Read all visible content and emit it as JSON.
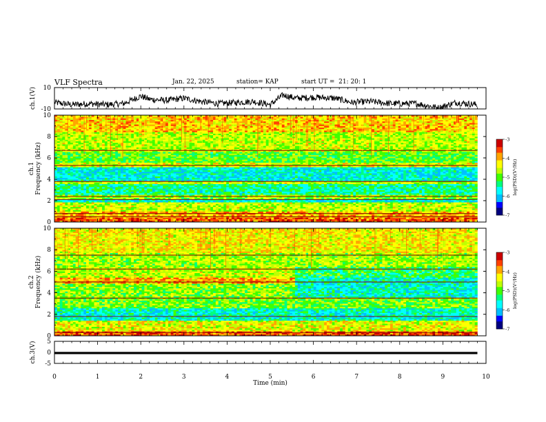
{
  "header": {
    "title": "VLF Spectra",
    "date": "Jan. 22, 2025",
    "station": "station= KAP",
    "start": "start UT =  21: 20: 1"
  },
  "colors": {
    "spectral_ramp": [
      "#00007f",
      "#0000ff",
      "#00bfff",
      "#00ffff",
      "#00ff7f",
      "#40ff00",
      "#bfff00",
      "#ffff00",
      "#ffa500",
      "#ff4000",
      "#cc0000",
      "#ffffff"
    ]
  },
  "chart_data": [
    {
      "type": "line",
      "name": "ch1-waveform",
      "ylabel": "ch.1(V)",
      "ylim": [
        -10,
        10
      ],
      "yticks": [
        "10",
        "-10"
      ],
      "xlim": [
        0,
        10
      ],
      "x_extent_min": 9.8,
      "trend": [
        [
          0,
          -4
        ],
        [
          0.4,
          -6
        ],
        [
          0.8,
          -5
        ],
        [
          1.2,
          -6
        ],
        [
          1.6,
          -5
        ],
        [
          2.0,
          2
        ],
        [
          2.2,
          -1
        ],
        [
          2.6,
          -2
        ],
        [
          3.0,
          0
        ],
        [
          3.4,
          -3
        ],
        [
          3.8,
          -5
        ],
        [
          4.2,
          -4
        ],
        [
          4.6,
          -3
        ],
        [
          5.0,
          -6
        ],
        [
          5.3,
          3
        ],
        [
          5.6,
          0
        ],
        [
          6.0,
          1
        ],
        [
          6.5,
          0
        ],
        [
          6.9,
          -4
        ],
        [
          7.3,
          -3
        ],
        [
          7.8,
          -5
        ],
        [
          8.4,
          -5
        ],
        [
          8.9,
          -9
        ],
        [
          9.3,
          -4
        ],
        [
          9.8,
          -6
        ]
      ]
    },
    {
      "type": "heatmap",
      "name": "ch1-spectrogram",
      "ylabel_lines": [
        "ch.1",
        "Frequency (kHz)"
      ],
      "ylim": [
        0,
        10
      ],
      "yticks": [
        "0",
        "2",
        "4",
        "6",
        "8",
        "10"
      ],
      "xlim": [
        0,
        10
      ],
      "x_extent_min": 9.8,
      "colorbar": {
        "label": "log(PSD)(V²/Hz)",
        "range": [
          -7,
          -3
        ],
        "ticks": [
          "-3",
          "-4",
          "-5",
          "-6",
          "-7"
        ]
      },
      "bands": [
        {
          "f": [
            0,
            0.4
          ],
          "level": -3.6
        },
        {
          "f": [
            0.4,
            1.0
          ],
          "level": -4.0
        },
        {
          "f": [
            1.0,
            1.9
          ],
          "level": -4.6
        },
        {
          "f": [
            1.9,
            2.2
          ],
          "level": -5.7
        },
        {
          "f": [
            2.2,
            2.6
          ],
          "level": -4.8
        },
        {
          "f": [
            2.6,
            3.6
          ],
          "level": -5.4
        },
        {
          "f": [
            3.6,
            3.9
          ],
          "level": -4.6
        },
        {
          "f": [
            3.9,
            5.2
          ],
          "level": -5.7
        },
        {
          "f": [
            5.2,
            5.6
          ],
          "level": -4.5
        },
        {
          "f": [
            5.6,
            6.6
          ],
          "level": -5.0
        },
        {
          "f": [
            6.6,
            8.5
          ],
          "level": -4.6
        },
        {
          "f": [
            8.5,
            10
          ],
          "level": -4.1
        }
      ],
      "lines_khz": [
        0.5,
        0.8,
        2.1,
        2.4,
        3.8,
        5.3,
        6.7
      ],
      "transitions": []
    },
    {
      "type": "heatmap",
      "name": "ch2-spectrogram",
      "ylabel_lines": [
        "ch.2",
        "Frequency (kHz)"
      ],
      "ylim": [
        0,
        10
      ],
      "yticks": [
        "0",
        "2",
        "4",
        "6",
        "8",
        "10"
      ],
      "xlim": [
        0,
        10
      ],
      "x_extent_min": 9.8,
      "colorbar": {
        "label": "log(PSD)(V²/Hz)",
        "range": [
          -7,
          -3
        ],
        "ticks": [
          "-3",
          "-4",
          "-5",
          "-6",
          "-7"
        ]
      },
      "bands": [
        {
          "f": [
            0,
            0.5
          ],
          "level": -3.6
        },
        {
          "f": [
            0.5,
            1.5
          ],
          "level": -4.4
        },
        {
          "f": [
            1.5,
            2.6
          ],
          "level": -5.6
        },
        {
          "f": [
            2.6,
            3.4
          ],
          "level": -4.9
        },
        {
          "f": [
            3.4,
            4.8
          ],
          "level": -4.8
        },
        {
          "f": [
            4.8,
            5.4
          ],
          "level": -4.0
        },
        {
          "f": [
            5.4,
            6.5
          ],
          "level": -4.6
        },
        {
          "f": [
            6.5,
            7.7
          ],
          "level": -4.7
        },
        {
          "f": [
            7.7,
            10
          ],
          "level": -4.3
        }
      ],
      "lines_khz": [
        0.3,
        1.8,
        3.5,
        5.0,
        6.2,
        7.5
      ],
      "transitions": [
        {
          "t_min": 5.6,
          "f": [
            3.6,
            5.4
          ],
          "level": -5.6
        },
        {
          "t_min": 5.6,
          "f": [
            5.4,
            6.4
          ],
          "level": -5.2
        }
      ]
    },
    {
      "type": "line",
      "name": "ch3-waveform",
      "ylabel": "ch.3(V)",
      "ylim": [
        -5,
        5
      ],
      "yticks": [
        "5",
        "0",
        "-5"
      ],
      "xlim": [
        0,
        10
      ],
      "x_extent_min": 9.8,
      "band_v": [
        -0.8,
        0.2
      ]
    }
  ],
  "x_axis": {
    "label": "Time (min)",
    "ticks": [
      "0",
      "1",
      "2",
      "3",
      "4",
      "5",
      "6",
      "7",
      "8",
      "9",
      "10"
    ]
  }
}
